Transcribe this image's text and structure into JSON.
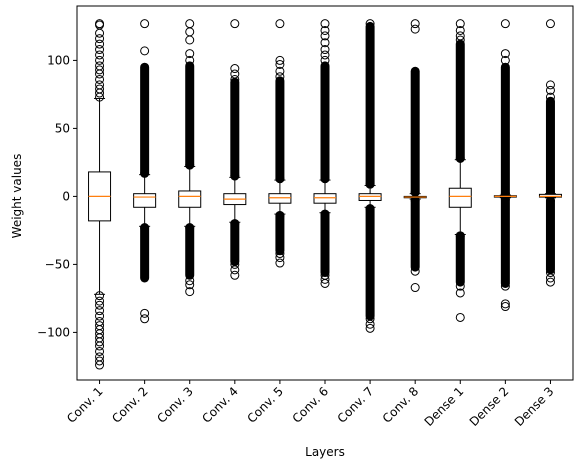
{
  "chart_data": {
    "type": "boxplot",
    "title": "",
    "xlabel": "Layers",
    "ylabel": "Weight values",
    "ylim": [
      -135,
      140
    ],
    "yticks": [
      -100,
      -50,
      0,
      50,
      100
    ],
    "categories": [
      "Conv. 1",
      "Conv. 2",
      "Conv. 3",
      "Conv. 4",
      "Conv. 5",
      "Conv. 6",
      "Conv. 7",
      "Conv. 8",
      "Dense 1",
      "Dense 2",
      "Dense 3"
    ],
    "boxes": [
      {
        "name": "Conv. 1",
        "q1": -18,
        "median": 0,
        "q3": 18,
        "whislo": -72,
        "whishi": 72,
        "outliers_low": [
          -73,
          -77,
          -80,
          -84,
          -88,
          -92,
          -95,
          -98,
          -101,
          -104,
          -107,
          -110,
          -114,
          -118,
          -121,
          -124
        ],
        "outliers_high": [
          73,
          76,
          79,
          82,
          86,
          90,
          93,
          96,
          100,
          104,
          108,
          112,
          116,
          120,
          126,
          127
        ]
      },
      {
        "name": "Conv. 2",
        "q1": -8,
        "median": -0.5,
        "q3": 2,
        "whislo": -22,
        "whishi": 16,
        "outliers_low": [
          -23,
          -90,
          -86
        ],
        "outliers_high": [
          17,
          107,
          127
        ],
        "dense_low": [
          -23,
          -60
        ],
        "dense_high": [
          17,
          95
        ]
      },
      {
        "name": "Conv. 3",
        "q1": -8,
        "median": 0,
        "q3": 4,
        "whislo": -22,
        "whishi": 22,
        "outliers_low": [
          -23,
          -62,
          -65,
          -70
        ],
        "outliers_high": [
          23,
          100,
          105,
          115,
          121,
          127
        ],
        "dense_low": [
          -23,
          -58
        ],
        "dense_high": [
          23,
          96
        ]
      },
      {
        "name": "Conv. 4",
        "q1": -6,
        "median": -2,
        "q3": 2,
        "whislo": -19,
        "whishi": 14,
        "outliers_low": [
          -20,
          -50,
          -54,
          -58
        ],
        "outliers_high": [
          15,
          86,
          90,
          94,
          127
        ],
        "dense_low": [
          -20,
          -48
        ],
        "dense_high": [
          15,
          84
        ]
      },
      {
        "name": "Conv. 5",
        "q1": -5,
        "median": -1,
        "q3": 2,
        "whislo": -13,
        "whishi": 12,
        "outliers_low": [
          -14,
          -42,
          -45,
          -49
        ],
        "outliers_high": [
          13,
          88,
          92,
          97,
          100,
          127
        ],
        "dense_low": [
          -14,
          -40
        ],
        "dense_high": [
          13,
          85
        ]
      },
      {
        "name": "Conv. 6",
        "q1": -5,
        "median": -1,
        "q3": 2,
        "whislo": -12,
        "whishi": 12,
        "outliers_low": [
          -13,
          -58,
          -61,
          -64
        ],
        "outliers_high": [
          13,
          100,
          104,
          108,
          113,
          118,
          122,
          127
        ],
        "dense_low": [
          -13,
          -56
        ],
        "dense_high": [
          13,
          96
        ]
      },
      {
        "name": "Conv. 7",
        "q1": -3,
        "median": 0,
        "q3": 2,
        "whislo": -8,
        "whishi": 8,
        "outliers_low": [
          -9,
          -90,
          -94,
          -97
        ],
        "outliers_high": [
          9,
          127
        ],
        "dense_low": [
          -9,
          -88
        ],
        "dense_high": [
          9,
          125
        ]
      },
      {
        "name": "Conv. 8",
        "q1": -1,
        "median": -0.5,
        "q3": 0,
        "whislo": -2,
        "whishi": 2,
        "outliers_low": [
          -3,
          -55,
          -67
        ],
        "outliers_high": [
          3,
          123,
          127
        ],
        "dense_low": [
          -3,
          -52
        ],
        "dense_high": [
          3,
          92
        ]
      },
      {
        "name": "Dense 1",
        "q1": -8,
        "median": 0,
        "q3": 6,
        "whislo": -28,
        "whishi": 27,
        "outliers_low": [
          -29,
          -66,
          -71,
          -89
        ],
        "outliers_high": [
          28,
          115,
          118,
          122,
          127
        ],
        "dense_low": [
          -29,
          -63
        ],
        "dense_high": [
          28,
          112
        ]
      },
      {
        "name": "Dense 2",
        "q1": -0.5,
        "median": 0,
        "q3": 0.5,
        "whislo": -1,
        "whishi": 1,
        "outliers_low": [
          -2,
          -66,
          -79,
          -81
        ],
        "outliers_high": [
          2,
          100,
          105,
          127
        ],
        "dense_low": [
          -2,
          -64
        ],
        "dense_high": [
          2,
          95
        ]
      },
      {
        "name": "Dense 3",
        "q1": -0.5,
        "median": 0,
        "q3": 1.5,
        "whislo": -1,
        "whishi": 2,
        "outliers_low": [
          -3,
          -56,
          -60,
          -63
        ],
        "outliers_high": [
          3,
          73,
          78,
          82,
          127
        ],
        "dense_low": [
          -3,
          -54
        ],
        "dense_high": [
          3,
          70
        ]
      }
    ],
    "colors": {
      "box": "#000000",
      "median": "#ff7f0e",
      "outlier": "#000000",
      "background": "#ffffff"
    },
    "grid": false,
    "legend": "none"
  }
}
